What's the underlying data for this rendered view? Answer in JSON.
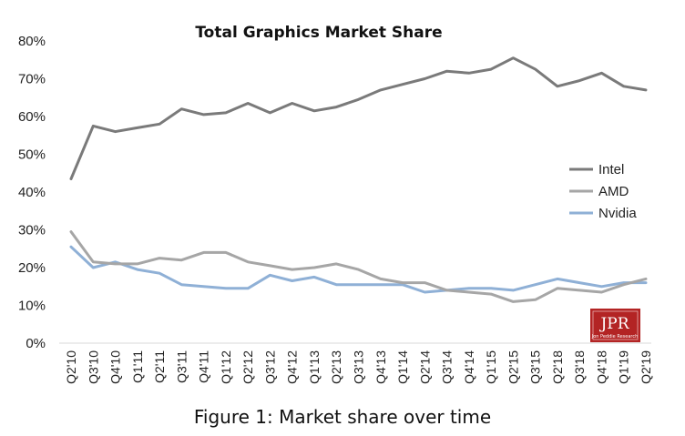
{
  "chart_data": {
    "type": "line",
    "title": "Total Graphics Market Share",
    "ylim": [
      0,
      80
    ],
    "yticks": [
      "0%",
      "10%",
      "20%",
      "30%",
      "40%",
      "50%",
      "60%",
      "70%",
      "80%"
    ],
    "grid": false,
    "legend_position": "right",
    "categories": [
      "Q2'10",
      "Q3'10",
      "Q4'10",
      "Q1'11",
      "Q2'11",
      "Q3'11",
      "Q4'11",
      "Q1'12",
      "Q2'12",
      "Q3'12",
      "Q4'12",
      "Q1'13",
      "Q2'13",
      "Q3'13",
      "Q4'13",
      "Q1'14",
      "Q2'14",
      "Q3'14",
      "Q4'14",
      "Q1'15",
      "Q2'15",
      "Q3'15",
      "Q2'18",
      "Q3'18",
      "Q4'18",
      "Q1'19",
      "Q2'19"
    ],
    "series": [
      {
        "name": "Intel",
        "color": "#7a7a7a",
        "values": [
          43.5,
          57.5,
          56,
          57,
          58,
          62,
          60.5,
          61,
          63.5,
          61,
          63.5,
          61.5,
          62.5,
          64.5,
          67,
          68.5,
          70,
          72,
          71.5,
          72.5,
          75.5,
          72.5,
          68,
          69.5,
          71.5,
          68,
          67
        ]
      },
      {
        "name": "AMD",
        "color": "#a6a6a6",
        "values": [
          29.5,
          21.5,
          21,
          21,
          22.5,
          22,
          24,
          24,
          21.5,
          20.5,
          19.5,
          20,
          21,
          19.5,
          17,
          16,
          16,
          14,
          13.5,
          13,
          11,
          11.5,
          14.5,
          14,
          13.5,
          15.5,
          17
        ]
      },
      {
        "name": "Nvidia",
        "color": "#8fb0d6",
        "values": [
          25.5,
          20,
          21.5,
          19.5,
          18.5,
          15.5,
          15,
          14.5,
          14.5,
          18,
          16.5,
          17.5,
          15.5,
          15.5,
          15.5,
          15.5,
          13.5,
          14,
          14.5,
          14.5,
          14,
          15.5,
          17,
          16,
          15,
          16,
          16
        ]
      }
    ]
  },
  "logo": {
    "text": "JPR",
    "subtext": "Jon Peddie Research"
  },
  "caption": "Figure 1: Market share over time"
}
